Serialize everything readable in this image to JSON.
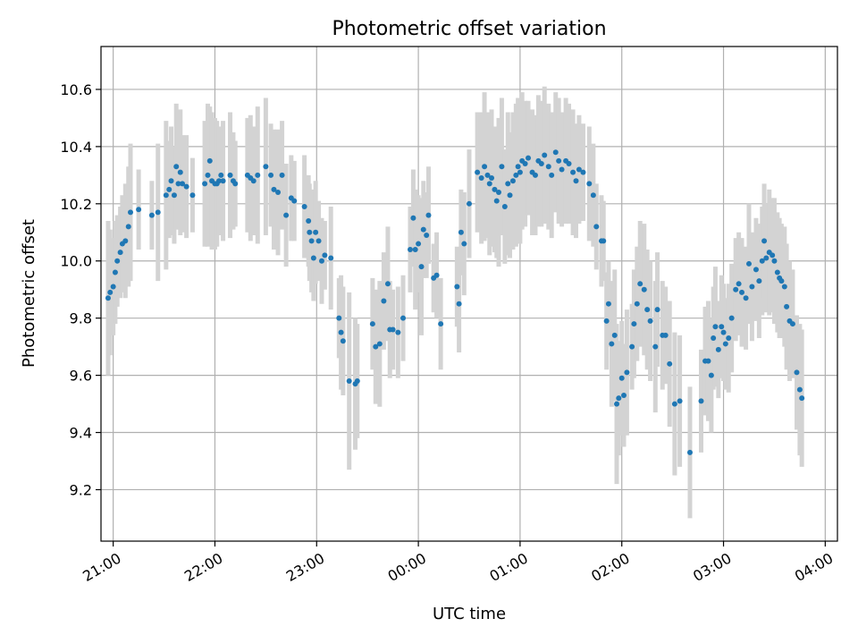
{
  "chart_data": {
    "type": "scatter",
    "title": "Photometric offset variation",
    "xlabel": "UTC time",
    "ylabel": "Photometric offset",
    "x_ticks": [
      "21:00",
      "22:00",
      "23:00",
      "00:00",
      "01:00",
      "02:00",
      "03:00",
      "04:00"
    ],
    "y_ticks": [
      "9.2",
      "9.4",
      "9.6",
      "9.8",
      "10.0",
      "10.2",
      "10.4",
      "10.6"
    ],
    "x_range_hours": [
      20.88,
      28.12
    ],
    "ylim": [
      9.02,
      10.75
    ],
    "grid": true,
    "colors": {
      "points": "#1f77b4",
      "error_bars": "#d3d3d3",
      "grid": "#b0b0b0"
    },
    "series": [
      {
        "points": [
          {
            "x": 20.95,
            "y": 9.87,
            "e": 0.27
          },
          {
            "x": 20.97,
            "y": 9.89,
            "e": 0.22
          },
          {
            "x": 21.0,
            "y": 9.91,
            "e": 0.17
          },
          {
            "x": 21.02,
            "y": 9.96,
            "e": 0.18
          },
          {
            "x": 21.04,
            "y": 10.0,
            "e": 0.16
          },
          {
            "x": 21.07,
            "y": 10.03,
            "e": 0.16
          },
          {
            "x": 21.09,
            "y": 10.06,
            "e": 0.17
          },
          {
            "x": 21.12,
            "y": 10.07,
            "e": 0.2
          },
          {
            "x": 21.15,
            "y": 10.12,
            "e": 0.21
          },
          {
            "x": 21.17,
            "y": 10.17,
            "e": 0.24
          },
          {
            "x": 21.25,
            "y": 10.18,
            "e": 0.14
          },
          {
            "x": 21.38,
            "y": 10.16,
            "e": 0.12
          },
          {
            "x": 21.44,
            "y": 10.17,
            "e": 0.24
          },
          {
            "x": 21.52,
            "y": 10.23,
            "e": 0.26
          },
          {
            "x": 21.55,
            "y": 10.25,
            "e": 0.17
          },
          {
            "x": 21.57,
            "y": 10.28,
            "e": 0.19
          },
          {
            "x": 21.6,
            "y": 10.23,
            "e": 0.17
          },
          {
            "x": 21.62,
            "y": 10.33,
            "e": 0.22
          },
          {
            "x": 21.64,
            "y": 10.27,
            "e": 0.16
          },
          {
            "x": 21.66,
            "y": 10.31,
            "e": 0.22
          },
          {
            "x": 21.68,
            "y": 10.27,
            "e": 0.17
          },
          {
            "x": 21.72,
            "y": 10.26,
            "e": 0.18
          },
          {
            "x": 21.78,
            "y": 10.23,
            "e": 0.13
          },
          {
            "x": 21.9,
            "y": 10.27,
            "e": 0.22
          },
          {
            "x": 21.93,
            "y": 10.3,
            "e": 0.25
          },
          {
            "x": 21.95,
            "y": 10.35,
            "e": 0.19
          },
          {
            "x": 21.97,
            "y": 10.28,
            "e": 0.24
          },
          {
            "x": 22.0,
            "y": 10.27,
            "e": 0.23
          },
          {
            "x": 22.02,
            "y": 10.27,
            "e": 0.22
          },
          {
            "x": 22.04,
            "y": 10.28,
            "e": 0.19
          },
          {
            "x": 22.06,
            "y": 10.3,
            "e": 0.17
          },
          {
            "x": 22.08,
            "y": 10.28,
            "e": 0.21
          },
          {
            "x": 22.15,
            "y": 10.3,
            "e": 0.22
          },
          {
            "x": 22.18,
            "y": 10.28,
            "e": 0.17
          },
          {
            "x": 22.2,
            "y": 10.27,
            "e": 0.15
          },
          {
            "x": 22.32,
            "y": 10.3,
            "e": 0.2
          },
          {
            "x": 22.35,
            "y": 10.29,
            "e": 0.22
          },
          {
            "x": 22.38,
            "y": 10.28,
            "e": 0.19
          },
          {
            "x": 22.42,
            "y": 10.3,
            "e": 0.24
          },
          {
            "x": 22.5,
            "y": 10.33,
            "e": 0.24
          },
          {
            "x": 22.55,
            "y": 10.3,
            "e": 0.18
          },
          {
            "x": 22.58,
            "y": 10.25,
            "e": 0.21
          },
          {
            "x": 22.62,
            "y": 10.24,
            "e": 0.22
          },
          {
            "x": 22.66,
            "y": 10.3,
            "e": 0.19
          },
          {
            "x": 22.7,
            "y": 10.16,
            "e": 0.18
          },
          {
            "x": 22.75,
            "y": 10.22,
            "e": 0.15
          },
          {
            "x": 22.78,
            "y": 10.21,
            "e": 0.14
          },
          {
            "x": 22.88,
            "y": 10.19,
            "e": 0.18
          },
          {
            "x": 22.92,
            "y": 10.14,
            "e": 0.16
          },
          {
            "x": 22.93,
            "y": 10.1,
            "e": 0.17
          },
          {
            "x": 22.95,
            "y": 10.07,
            "e": 0.18
          },
          {
            "x": 22.97,
            "y": 10.01,
            "e": 0.15
          },
          {
            "x": 22.99,
            "y": 10.1,
            "e": 0.18
          },
          {
            "x": 23.02,
            "y": 10.07,
            "e": 0.14
          },
          {
            "x": 23.05,
            "y": 10.0,
            "e": 0.15
          },
          {
            "x": 23.08,
            "y": 10.02,
            "e": 0.12
          },
          {
            "x": 23.14,
            "y": 10.01,
            "e": 0.18
          },
          {
            "x": 23.22,
            "y": 9.8,
            "e": 0.14
          },
          {
            "x": 23.24,
            "y": 9.75,
            "e": 0.2
          },
          {
            "x": 23.26,
            "y": 9.72,
            "e": 0.19
          },
          {
            "x": 23.32,
            "y": 9.58,
            "e": 0.31
          },
          {
            "x": 23.38,
            "y": 9.57,
            "e": 0.23
          },
          {
            "x": 23.4,
            "y": 9.58,
            "e": 0.2
          },
          {
            "x": 23.55,
            "y": 9.78,
            "e": 0.16
          },
          {
            "x": 23.58,
            "y": 9.7,
            "e": 0.2
          },
          {
            "x": 23.62,
            "y": 9.71,
            "e": 0.22
          },
          {
            "x": 23.66,
            "y": 9.86,
            "e": 0.17
          },
          {
            "x": 23.7,
            "y": 9.92,
            "e": 0.2
          },
          {
            "x": 23.72,
            "y": 9.76,
            "e": 0.17
          },
          {
            "x": 23.75,
            "y": 9.76,
            "e": 0.14
          },
          {
            "x": 23.8,
            "y": 9.75,
            "e": 0.16
          },
          {
            "x": 23.85,
            "y": 9.8,
            "e": 0.15
          },
          {
            "x": 23.92,
            "y": 10.04,
            "e": 0.15
          },
          {
            "x": 23.95,
            "y": 10.15,
            "e": 0.17
          },
          {
            "x": 23.97,
            "y": 10.04,
            "e": 0.21
          },
          {
            "x": 24.0,
            "y": 10.06,
            "e": 0.17
          },
          {
            "x": 24.03,
            "y": 9.98,
            "e": 0.24
          },
          {
            "x": 24.05,
            "y": 10.11,
            "e": 0.17
          },
          {
            "x": 24.08,
            "y": 10.09,
            "e": 0.15
          },
          {
            "x": 24.1,
            "y": 10.16,
            "e": 0.17
          },
          {
            "x": 24.15,
            "y": 9.94,
            "e": 0.12
          },
          {
            "x": 24.18,
            "y": 9.95,
            "e": 0.15
          },
          {
            "x": 24.22,
            "y": 9.78,
            "e": 0.16
          },
          {
            "x": 24.38,
            "y": 9.91,
            "e": 0.14
          },
          {
            "x": 24.4,
            "y": 9.85,
            "e": 0.17
          },
          {
            "x": 24.42,
            "y": 10.1,
            "e": 0.15
          },
          {
            "x": 24.45,
            "y": 10.06,
            "e": 0.18
          },
          {
            "x": 24.5,
            "y": 10.2,
            "e": 0.19
          },
          {
            "x": 24.58,
            "y": 10.31,
            "e": 0.21
          },
          {
            "x": 24.62,
            "y": 10.29,
            "e": 0.23
          },
          {
            "x": 24.65,
            "y": 10.33,
            "e": 0.26
          },
          {
            "x": 24.68,
            "y": 10.3,
            "e": 0.22
          },
          {
            "x": 24.7,
            "y": 10.27,
            "e": 0.25
          },
          {
            "x": 24.72,
            "y": 10.29,
            "e": 0.24
          },
          {
            "x": 24.75,
            "y": 10.25,
            "e": 0.22
          },
          {
            "x": 24.77,
            "y": 10.21,
            "e": 0.2
          },
          {
            "x": 24.79,
            "y": 10.24,
            "e": 0.26
          },
          {
            "x": 24.82,
            "y": 10.33,
            "e": 0.24
          },
          {
            "x": 24.85,
            "y": 10.19,
            "e": 0.2
          },
          {
            "x": 24.88,
            "y": 10.27,
            "e": 0.25
          },
          {
            "x": 24.9,
            "y": 10.23,
            "e": 0.22
          },
          {
            "x": 24.93,
            "y": 10.28,
            "e": 0.24
          },
          {
            "x": 24.96,
            "y": 10.3,
            "e": 0.25
          },
          {
            "x": 24.98,
            "y": 10.33,
            "e": 0.24
          },
          {
            "x": 25.0,
            "y": 10.31,
            "e": 0.25
          },
          {
            "x": 25.02,
            "y": 10.35,
            "e": 0.24
          },
          {
            "x": 25.05,
            "y": 10.34,
            "e": 0.22
          },
          {
            "x": 25.08,
            "y": 10.36,
            "e": 0.2
          },
          {
            "x": 25.12,
            "y": 10.31,
            "e": 0.22
          },
          {
            "x": 25.15,
            "y": 10.3,
            "e": 0.21
          },
          {
            "x": 25.18,
            "y": 10.35,
            "e": 0.23
          },
          {
            "x": 25.21,
            "y": 10.34,
            "e": 0.22
          },
          {
            "x": 25.24,
            "y": 10.37,
            "e": 0.24
          },
          {
            "x": 25.28,
            "y": 10.33,
            "e": 0.22
          },
          {
            "x": 25.31,
            "y": 10.3,
            "e": 0.22
          },
          {
            "x": 25.35,
            "y": 10.38,
            "e": 0.21
          },
          {
            "x": 25.38,
            "y": 10.35,
            "e": 0.22
          },
          {
            "x": 25.41,
            "y": 10.32,
            "e": 0.2
          },
          {
            "x": 25.45,
            "y": 10.35,
            "e": 0.22
          },
          {
            "x": 25.48,
            "y": 10.34,
            "e": 0.21
          },
          {
            "x": 25.52,
            "y": 10.31,
            "e": 0.22
          },
          {
            "x": 25.55,
            "y": 10.28,
            "e": 0.2
          },
          {
            "x": 25.58,
            "y": 10.32,
            "e": 0.19
          },
          {
            "x": 25.62,
            "y": 10.31,
            "e": 0.17
          },
          {
            "x": 25.68,
            "y": 10.27,
            "e": 0.2
          },
          {
            "x": 25.72,
            "y": 10.23,
            "e": 0.18
          },
          {
            "x": 25.75,
            "y": 10.12,
            "e": 0.15
          },
          {
            "x": 25.8,
            "y": 10.07,
            "e": 0.16
          },
          {
            "x": 25.82,
            "y": 10.07,
            "e": 0.14
          },
          {
            "x": 25.85,
            "y": 9.79,
            "e": 0.17
          },
          {
            "x": 25.87,
            "y": 9.85,
            "e": 0.15
          },
          {
            "x": 25.9,
            "y": 9.71,
            "e": 0.22
          },
          {
            "x": 25.93,
            "y": 9.74,
            "e": 0.23
          },
          {
            "x": 25.95,
            "y": 9.5,
            "e": 0.28
          },
          {
            "x": 25.97,
            "y": 9.52,
            "e": 0.2
          },
          {
            "x": 26.0,
            "y": 9.59,
            "e": 0.2
          },
          {
            "x": 26.02,
            "y": 9.53,
            "e": 0.18
          },
          {
            "x": 26.05,
            "y": 9.61,
            "e": 0.22
          },
          {
            "x": 26.1,
            "y": 9.7,
            "e": 0.15
          },
          {
            "x": 26.12,
            "y": 9.78,
            "e": 0.19
          },
          {
            "x": 26.15,
            "y": 9.85,
            "e": 0.2
          },
          {
            "x": 26.18,
            "y": 9.92,
            "e": 0.22
          },
          {
            "x": 26.22,
            "y": 9.9,
            "e": 0.23
          },
          {
            "x": 26.25,
            "y": 9.83,
            "e": 0.21
          },
          {
            "x": 26.28,
            "y": 9.79,
            "e": 0.21
          },
          {
            "x": 26.33,
            "y": 9.7,
            "e": 0.23
          },
          {
            "x": 26.35,
            "y": 9.83,
            "e": 0.2
          },
          {
            "x": 26.4,
            "y": 9.74,
            "e": 0.19
          },
          {
            "x": 26.43,
            "y": 9.74,
            "e": 0.17
          },
          {
            "x": 26.47,
            "y": 9.64,
            "e": 0.22
          },
          {
            "x": 26.52,
            "y": 9.5,
            "e": 0.25
          },
          {
            "x": 26.57,
            "y": 9.51,
            "e": 0.23
          },
          {
            "x": 26.67,
            "y": 9.33,
            "e": 0.23
          },
          {
            "x": 26.78,
            "y": 9.51,
            "e": 0.18
          },
          {
            "x": 26.82,
            "y": 9.65,
            "e": 0.19
          },
          {
            "x": 26.85,
            "y": 9.65,
            "e": 0.21
          },
          {
            "x": 26.88,
            "y": 9.6,
            "e": 0.2
          },
          {
            "x": 26.9,
            "y": 9.73,
            "e": 0.18
          },
          {
            "x": 26.92,
            "y": 9.77,
            "e": 0.21
          },
          {
            "x": 26.95,
            "y": 9.69,
            "e": 0.17
          },
          {
            "x": 26.98,
            "y": 9.77,
            "e": 0.18
          },
          {
            "x": 27.0,
            "y": 9.75,
            "e": 0.17
          },
          {
            "x": 27.02,
            "y": 9.71,
            "e": 0.16
          },
          {
            "x": 27.05,
            "y": 9.73,
            "e": 0.19
          },
          {
            "x": 27.08,
            "y": 9.8,
            "e": 0.19
          },
          {
            "x": 27.12,
            "y": 9.9,
            "e": 0.18
          },
          {
            "x": 27.15,
            "y": 9.92,
            "e": 0.18
          },
          {
            "x": 27.18,
            "y": 9.89,
            "e": 0.19
          },
          {
            "x": 27.22,
            "y": 9.87,
            "e": 0.18
          },
          {
            "x": 27.25,
            "y": 9.99,
            "e": 0.21
          },
          {
            "x": 27.28,
            "y": 9.91,
            "e": 0.19
          },
          {
            "x": 27.32,
            "y": 9.97,
            "e": 0.18
          },
          {
            "x": 27.35,
            "y": 9.93,
            "e": 0.2
          },
          {
            "x": 27.38,
            "y": 10.0,
            "e": 0.19
          },
          {
            "x": 27.4,
            "y": 10.07,
            "e": 0.2
          },
          {
            "x": 27.42,
            "y": 10.01,
            "e": 0.19
          },
          {
            "x": 27.45,
            "y": 10.03,
            "e": 0.22
          },
          {
            "x": 27.48,
            "y": 10.02,
            "e": 0.2
          },
          {
            "x": 27.5,
            "y": 10.0,
            "e": 0.22
          },
          {
            "x": 27.53,
            "y": 9.96,
            "e": 0.21
          },
          {
            "x": 27.55,
            "y": 9.94,
            "e": 0.21
          },
          {
            "x": 27.57,
            "y": 9.93,
            "e": 0.2
          },
          {
            "x": 27.6,
            "y": 9.91,
            "e": 0.21
          },
          {
            "x": 27.62,
            "y": 9.84,
            "e": 0.22
          },
          {
            "x": 27.65,
            "y": 9.79,
            "e": 0.21
          },
          {
            "x": 27.68,
            "y": 9.78,
            "e": 0.19
          },
          {
            "x": 27.72,
            "y": 9.61,
            "e": 0.2
          },
          {
            "x": 27.75,
            "y": 9.55,
            "e": 0.23
          },
          {
            "x": 27.77,
            "y": 9.52,
            "e": 0.24
          }
        ]
      }
    ]
  }
}
